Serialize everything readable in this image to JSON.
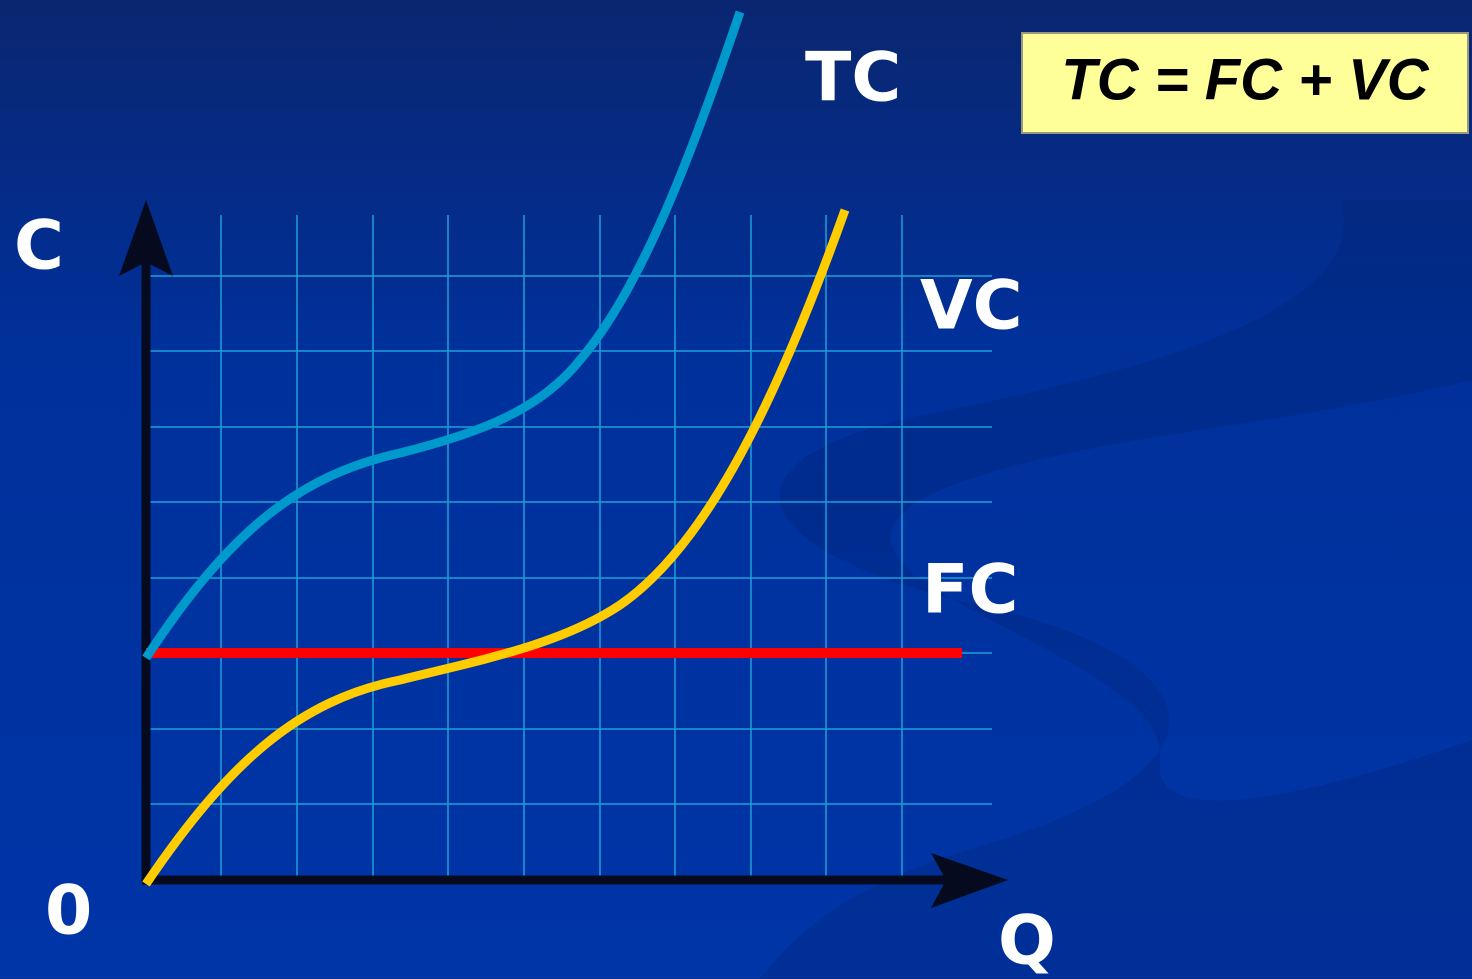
{
  "labels": {
    "tc": "TC",
    "vc": "VC",
    "fc": "FC",
    "y_axis": "C",
    "origin": "0",
    "x_axis": "Q"
  },
  "formula": "TC = FC + VC"
}
